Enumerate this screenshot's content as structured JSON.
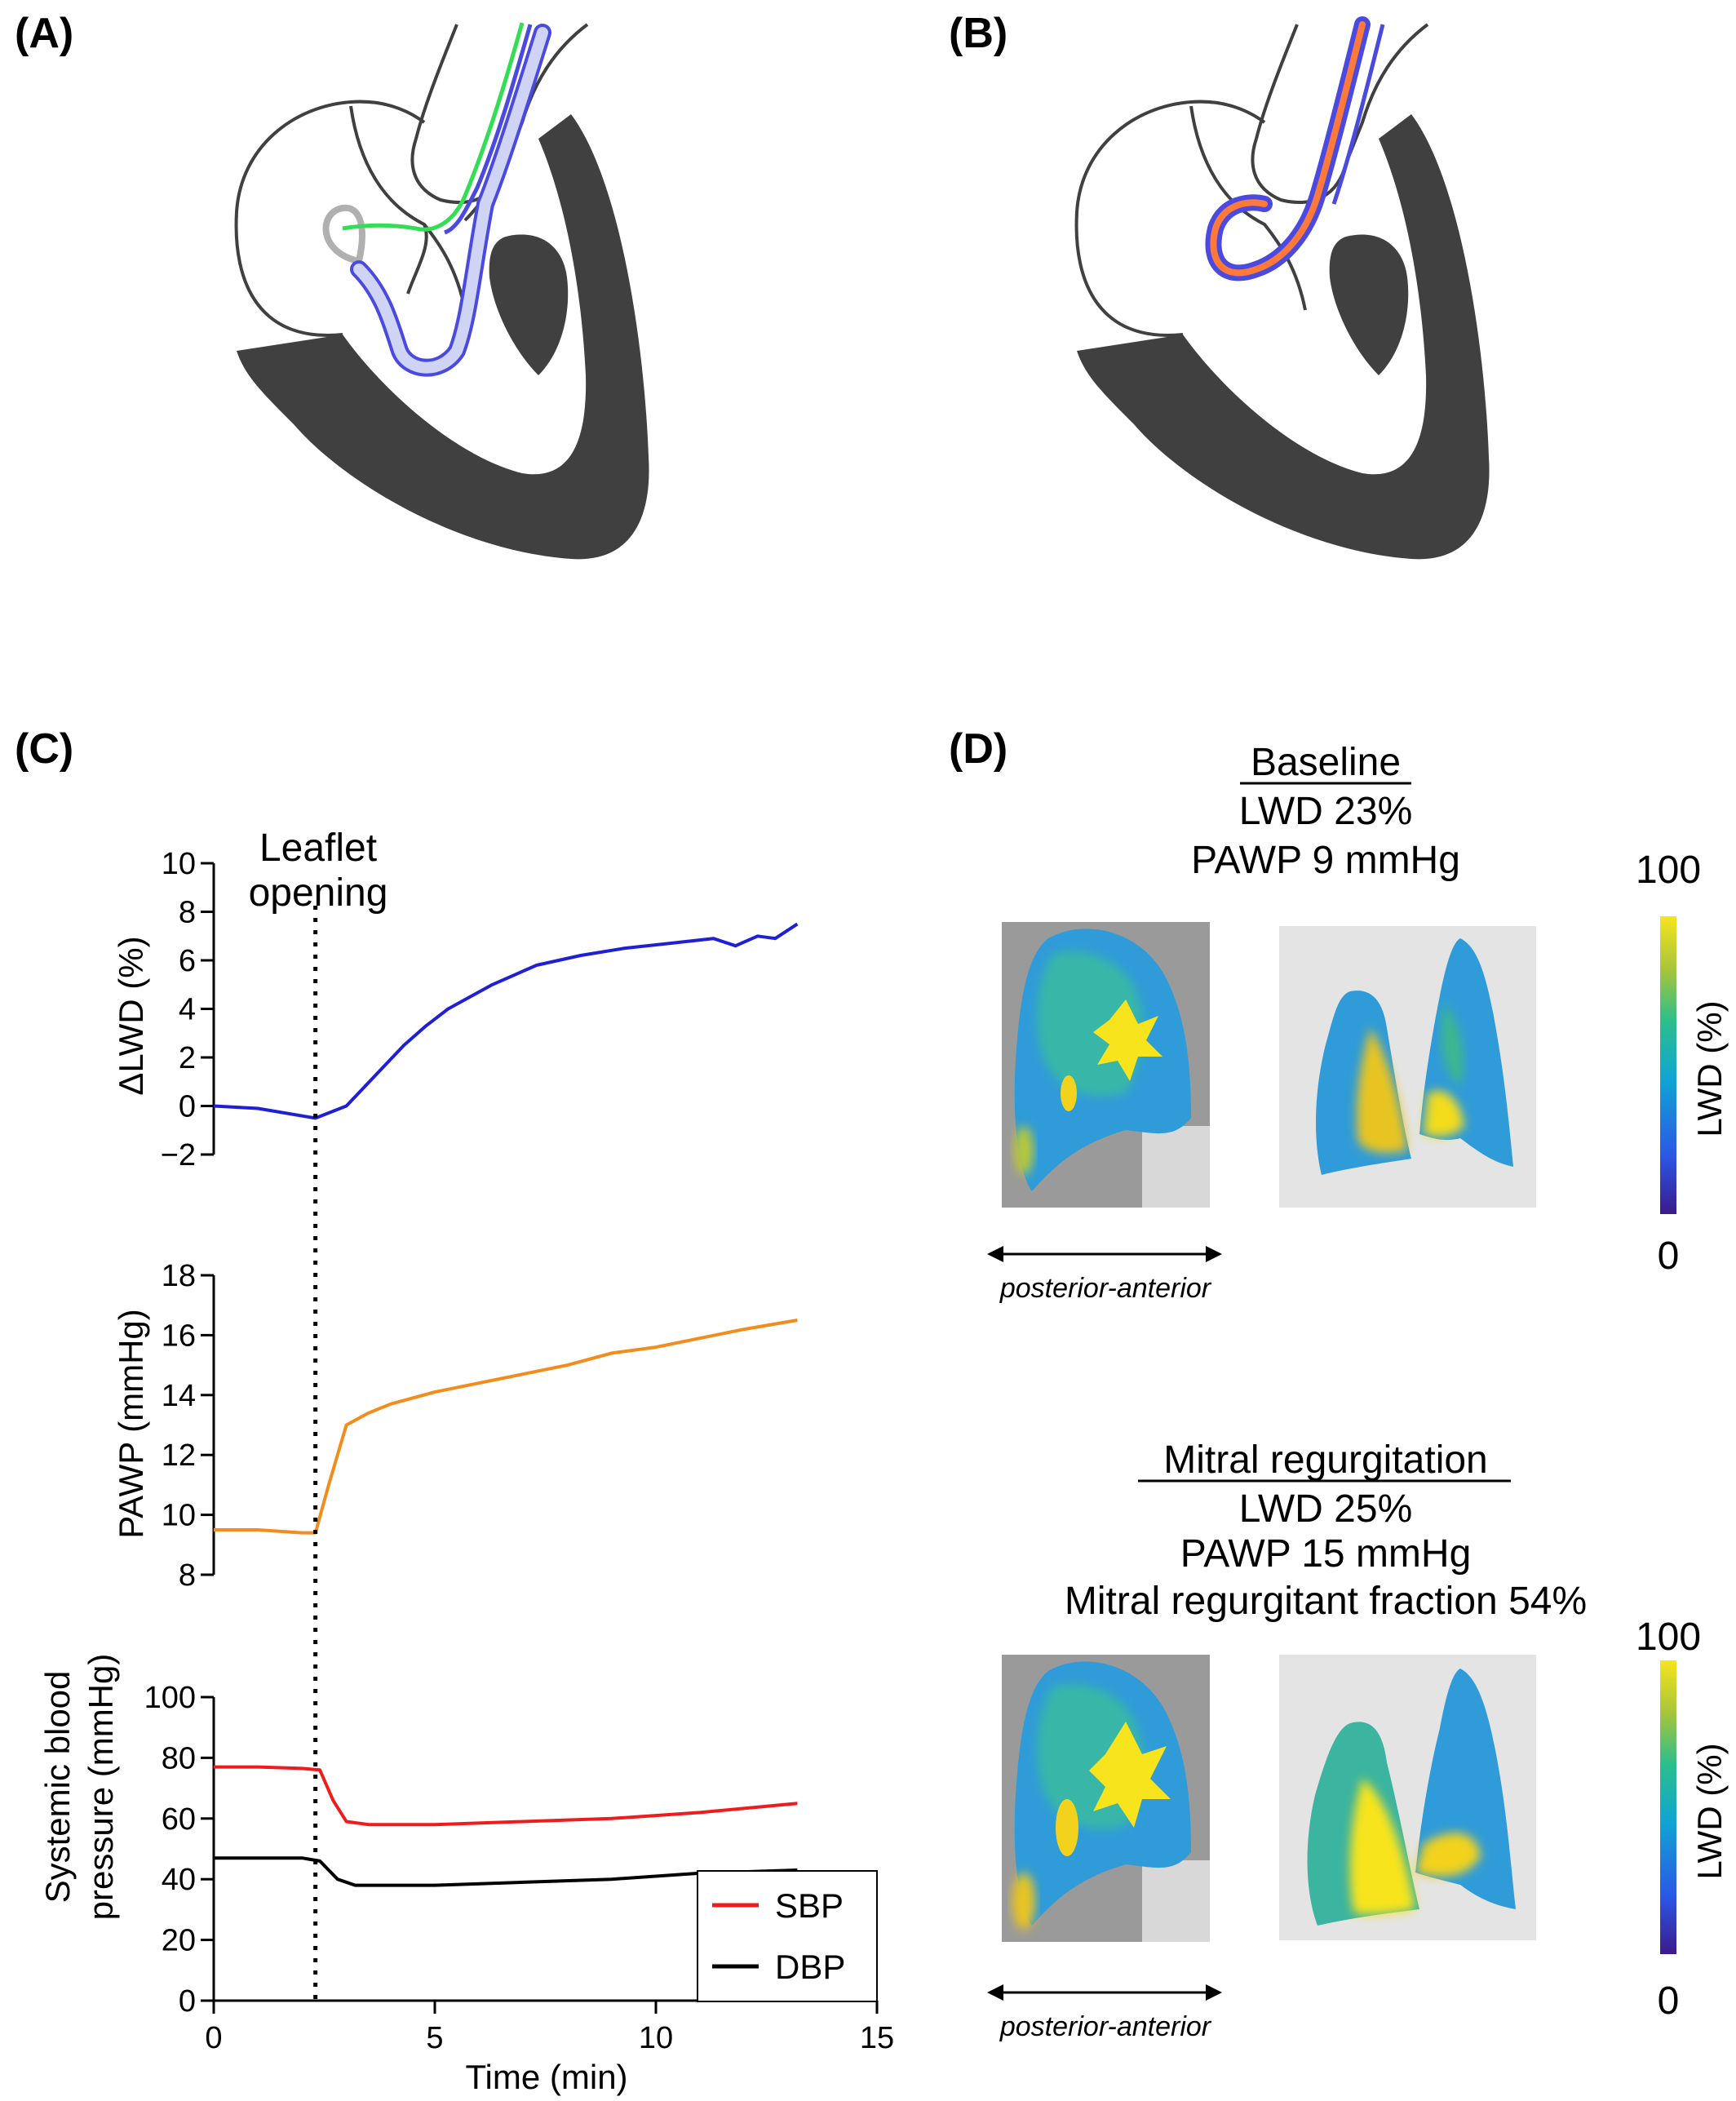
{
  "panels": {
    "a": {
      "label": "(A)"
    },
    "b": {
      "label": "(B)"
    },
    "c": {
      "label": "(C)"
    },
    "d": {
      "label": "(D)"
    }
  },
  "colors": {
    "lwd_line": "#1f1fd6",
    "pawp_line": "#f28c1c",
    "sbp_line": "#ee1c1c",
    "dbp_line": "#000000",
    "heart_wall": "#404040",
    "catheter_blue": "#4a4ae0",
    "catheter_green": "#33dd55",
    "catheter_orange": "#ff7a3a"
  },
  "chart_data": [
    {
      "type": "line",
      "ylabel": "ΔLWD (%)",
      "ylim": [
        -2,
        10
      ],
      "yticks": [
        "10",
        "8",
        "6",
        "4",
        "2",
        "0",
        "−2"
      ],
      "event": {
        "x": 2.3,
        "label_line1": "Leaflet",
        "label_line2": "opening"
      },
      "series": [
        {
          "x": [
            0,
            1,
            2.3,
            3,
            4.3,
            4.8,
            5.3,
            6.3,
            7.3,
            8.3,
            9.3,
            10.3,
            11.3,
            11.8,
            12.3,
            12.7,
            13.2
          ],
          "values": [
            0,
            -0.1,
            -0.5,
            0.0,
            2.5,
            3.3,
            4.0,
            5.0,
            5.8,
            6.2,
            6.5,
            6.7,
            6.9,
            6.6,
            7.0,
            6.9,
            7.5
          ]
        }
      ]
    },
    {
      "type": "line",
      "ylabel": "PAWP (mmHg)",
      "ylim": [
        8,
        18
      ],
      "yticks": [
        "18",
        "16",
        "14",
        "12",
        "10",
        "8"
      ],
      "series": [
        {
          "x": [
            0,
            1,
            2,
            2.3,
            2.6,
            3.0,
            3.5,
            4,
            5,
            6,
            7,
            8,
            9,
            10,
            11,
            12,
            13.2
          ],
          "values": [
            9.5,
            9.5,
            9.4,
            9.4,
            11.0,
            13.0,
            13.4,
            13.7,
            14.1,
            14.4,
            14.7,
            15.0,
            15.4,
            15.6,
            15.9,
            16.2,
            16.5
          ]
        }
      ]
    },
    {
      "type": "line",
      "ylabel": "Systemic blood pressure (mmHg)",
      "ylabel_line1": "Systemic blood",
      "ylabel_line2": "pressure (mmHg)",
      "xlabel": "Time (min)",
      "ylim": [
        0,
        100
      ],
      "xlim": [
        0,
        15
      ],
      "yticks": [
        "100",
        "80",
        "60",
        "40",
        "20",
        "0"
      ],
      "xticks": [
        "0",
        "5",
        "10",
        "15"
      ],
      "series": [
        {
          "name": "SBP",
          "x": [
            0,
            1,
            2,
            2.4,
            2.7,
            3.0,
            3.5,
            5,
            7,
            9,
            11,
            13.2
          ],
          "values": [
            77,
            77,
            76.5,
            76,
            66,
            59,
            58,
            58,
            59,
            60,
            62,
            65
          ]
        },
        {
          "name": "DBP",
          "x": [
            0,
            1,
            2,
            2.4,
            2.8,
            3.2,
            5,
            7,
            9,
            11,
            13.2
          ],
          "values": [
            47,
            47,
            47,
            46,
            40,
            38,
            38,
            39,
            40,
            42,
            43
          ]
        }
      ]
    }
  ],
  "panel_d": {
    "baseline": {
      "title": "Baseline",
      "line1": "LWD 23%",
      "line2": "PAWP 9 mmHg"
    },
    "mr": {
      "title": "Mitral regurgitation",
      "line1": "LWD 25%",
      "line2": "PAWP 15 mmHg",
      "line3": "Mitral regurgitant fraction 54%"
    },
    "colorbar": {
      "max": "100",
      "min": "0",
      "label": "LWD (%)"
    },
    "axis_note": "posterior-anterior"
  }
}
